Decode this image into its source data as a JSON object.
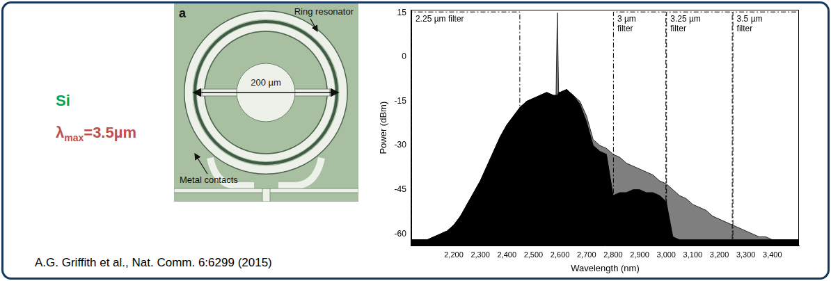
{
  "material": "Si",
  "lambda_max": {
    "symbol": "λ",
    "subscript": "max",
    "value_text": "=3.5µm"
  },
  "figure": {
    "letter": "a",
    "ring_label": "Ring resonator",
    "contacts_label": "Metal contacts",
    "scale_label": "200 µm"
  },
  "citation": "A.G. Griffith et al., Nat. Comm. 6:6299 (2015)",
  "chart_data": {
    "type": "line",
    "x_label": "Wavelength (nm)",
    "y_label": "Power (dBm)",
    "x": [
      2040,
      2050,
      2075,
      2100,
      2125,
      2150,
      2175,
      2200,
      2225,
      2250,
      2275,
      2300,
      2325,
      2350,
      2375,
      2400,
      2425,
      2450,
      2475,
      2500,
      2525,
      2550,
      2575,
      2585,
      2590,
      2595,
      2600,
      2625,
      2650,
      2675,
      2700,
      2725,
      2750,
      2775,
      2800,
      2825,
      2850,
      2875,
      2900,
      2925,
      2950,
      2975,
      3000,
      3025,
      3050,
      3075,
      3100,
      3125,
      3150,
      3175,
      3200,
      3225,
      3250,
      3275,
      3300,
      3325,
      3350,
      3375,
      3400,
      3425,
      3450,
      3475,
      3500
    ],
    "series": [
      {
        "color": "#000000",
        "values": [
          -62,
          -62,
          -62,
          -62,
          -61,
          -60,
          -59,
          -57,
          -54,
          -50,
          -46,
          -42,
          -37,
          -32,
          -27,
          -23,
          -20,
          -17,
          -15,
          -14,
          -13,
          -12,
          -13,
          -13,
          15,
          -12,
          -12,
          -11,
          -13,
          -15,
          -20,
          -28,
          -30,
          -31,
          -33,
          -34,
          -36,
          -37,
          -38,
          -39,
          -40,
          -42,
          -43,
          -45,
          -47,
          -48,
          -50,
          -51,
          -52,
          -54,
          -55,
          -56,
          -57,
          -58,
          -59,
          -60,
          -61,
          -61,
          -62,
          -62,
          -62,
          -62,
          -62
        ]
      },
      {
        "color": "#000000",
        "values": [
          -62,
          -62,
          -62,
          -62,
          -61,
          -60,
          -59,
          -57,
          -54,
          -50,
          -46,
          -42,
          -37,
          -32,
          -27,
          -23,
          -20,
          -17,
          -15,
          -14,
          -13,
          -12,
          -13,
          -13,
          -13,
          -12,
          -12,
          -11,
          -13,
          -16,
          -22,
          -30,
          -32,
          -33,
          -47,
          -46,
          -46,
          -45,
          -45,
          -46,
          -46,
          -47,
          -49,
          -61,
          -62,
          -62,
          -62,
          -62,
          -62,
          -62,
          -62,
          -62,
          -62,
          -62,
          -62,
          -62,
          -62,
          -62,
          -62,
          -62,
          -62,
          -62,
          -62
        ]
      }
    ],
    "xlim": [
      2040,
      3500
    ],
    "xticks": [
      {
        "value": 2200,
        "label": "2,200"
      },
      {
        "value": 2300,
        "label": "2,300"
      },
      {
        "value": 2400,
        "label": "2,400"
      },
      {
        "value": 2500,
        "label": "2,500"
      },
      {
        "value": 2600,
        "label": "2,600"
      },
      {
        "value": 2700,
        "label": "2,700"
      },
      {
        "value": 2800,
        "label": "2,800"
      },
      {
        "value": 2900,
        "label": "2,900"
      },
      {
        "value": 3000,
        "label": "3,000"
      },
      {
        "value": 3100,
        "label": "3,100"
      },
      {
        "value": 3200,
        "label": "3,200"
      },
      {
        "value": 3300,
        "label": "3,300"
      },
      {
        "value": 3400,
        "label": "3,400"
      }
    ],
    "ylim": [
      -64,
      16
    ],
    "yticks": [
      -60,
      -45,
      -30,
      -15,
      0,
      15
    ],
    "grid": false,
    "annotations": [
      {
        "text": "2.25 µm filter",
        "x_start": 2040,
        "x_end": 2450
      },
      {
        "text": "3 µm filter",
        "x_start": 2800,
        "x_end": 3000
      },
      {
        "text": "3.25 µm filter",
        "x_start": 3000,
        "x_end": 3250
      },
      {
        "text": "3.5 µm filter",
        "x_start": 3250,
        "x_end": 3500
      }
    ]
  }
}
